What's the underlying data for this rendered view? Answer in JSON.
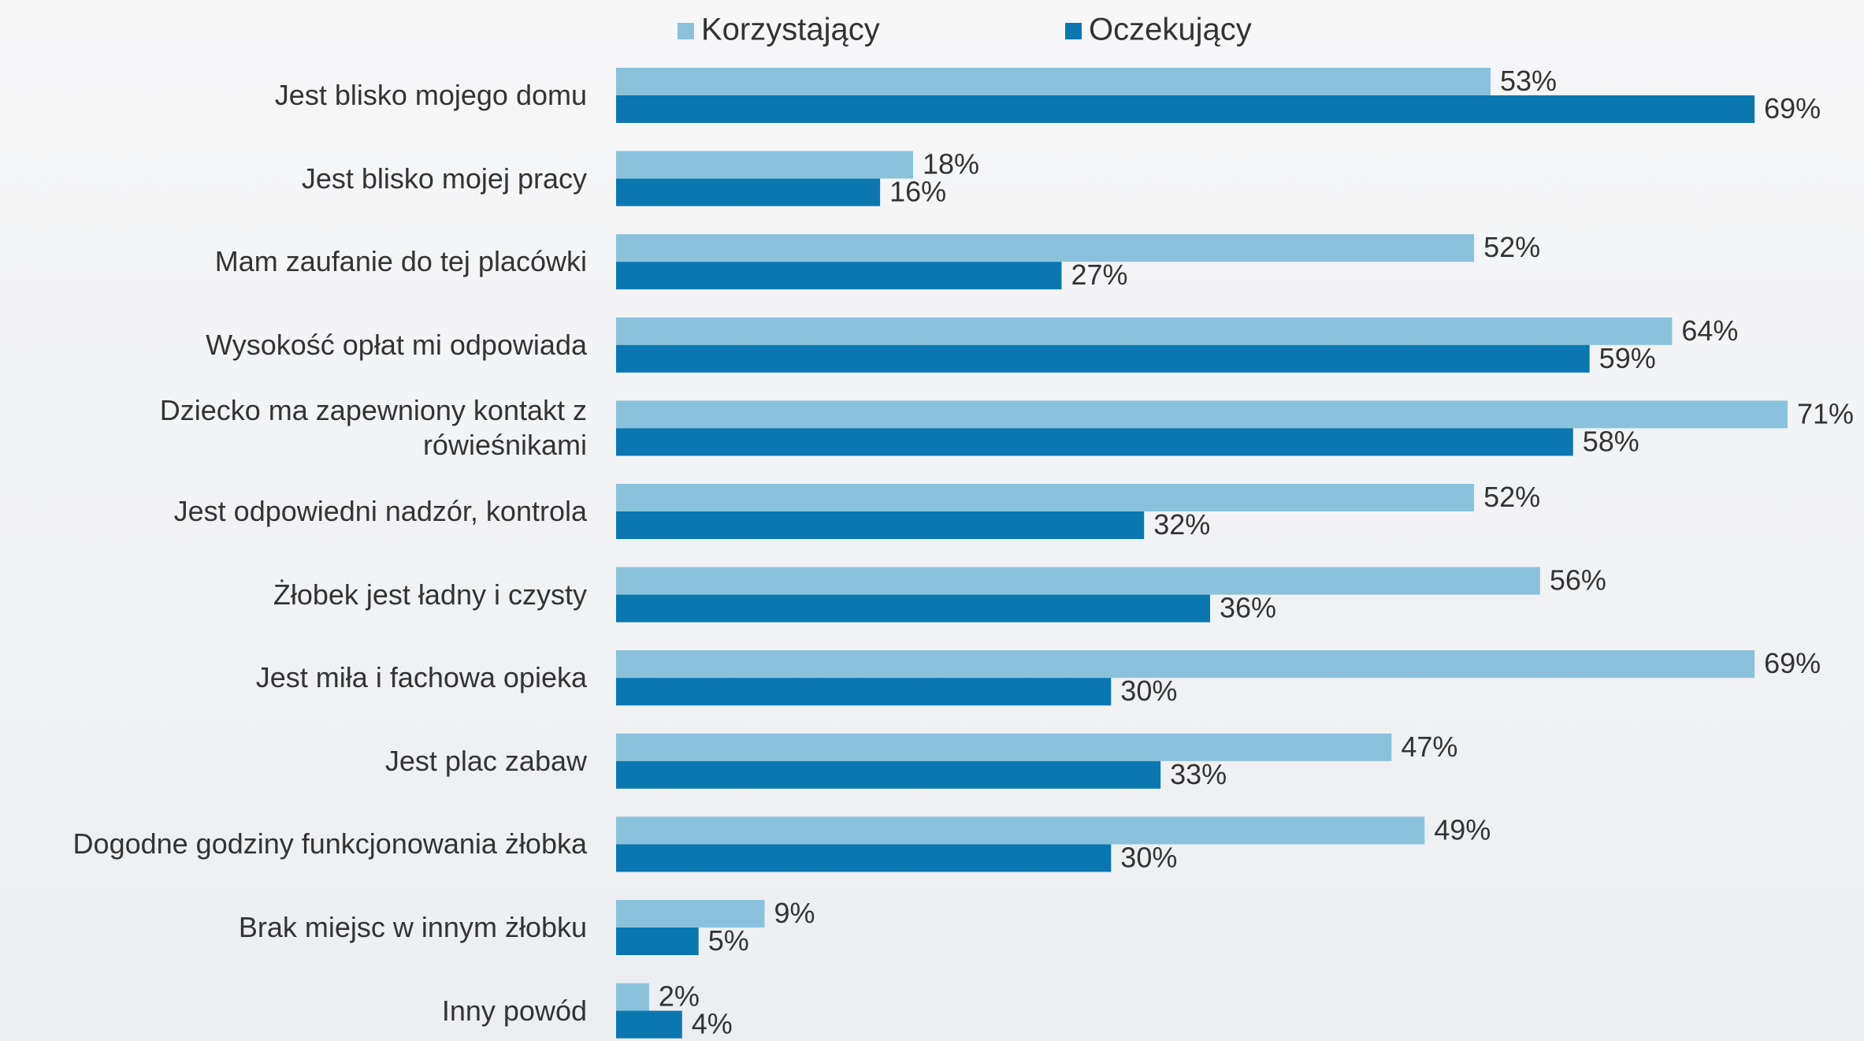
{
  "chart_data": {
    "type": "bar",
    "orientation": "horizontal",
    "categories": [
      "Jest blisko mojego domu",
      "Jest blisko mojej pracy",
      "Mam zaufanie do tej placówki",
      "Wysokość opłat mi odpowiada",
      "Dziecko ma zapewniony kontakt z rówieśnikami",
      "Jest odpowiedni nadzór, kontrola",
      "Żłobek jest ładny i czysty",
      "Jest miła i fachowa opieka",
      "Jest plac zabaw",
      "Dogodne godziny funkcjonowania żłobka",
      "Brak miejsc w innym żłobku",
      "Inny powód"
    ],
    "series": [
      {
        "name": "Korzystający",
        "color": "#8ac2dc",
        "values": [
          53,
          18,
          52,
          64,
          71,
          52,
          56,
          69,
          47,
          49,
          9,
          2
        ],
        "value_labels": [
          "53%",
          "18%",
          "52%",
          "64%",
          "71%",
          "52%",
          "56%",
          "69%",
          "47%",
          "49%",
          "9%",
          "2%"
        ]
      },
      {
        "name": "Oczekujący",
        "color": "#0a77b1",
        "values": [
          69,
          16,
          27,
          59,
          58,
          32,
          36,
          30,
          33,
          30,
          5,
          4
        ],
        "value_labels": [
          "69%",
          "16%",
          "27%",
          "59%",
          "58%",
          "32%",
          "36%",
          "30%",
          "33%",
          "30%",
          "5%",
          "4%"
        ]
      }
    ],
    "legend": "top"
  }
}
